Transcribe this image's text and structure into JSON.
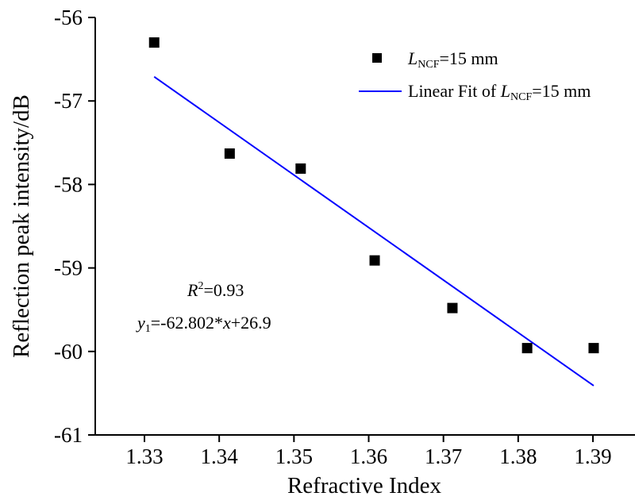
{
  "chart_data": {
    "type": "scatter",
    "xlabel": "Refractive Index",
    "ylabel": "Reflection peak intensity/dB",
    "xlim": [
      1.325,
      1.393
    ],
    "ylim": [
      -61,
      -56
    ],
    "xticks": [
      1.33,
      1.34,
      1.35,
      1.36,
      1.37,
      1.38,
      1.39
    ],
    "xtick_labels": [
      "1.33",
      "1.34",
      "1.35",
      "1.36",
      "1.37",
      "1.38",
      "1.39"
    ],
    "yticks": [
      -56,
      -57,
      -58,
      -59,
      -60,
      -61
    ],
    "ytick_labels": [
      "-56",
      "-57",
      "-58",
      "-59",
      "-60",
      "-61"
    ],
    "grid": false,
    "legend_position": "top-right",
    "series": [
      {
        "name": "L_NCF=15 mm",
        "kind": "scatter",
        "marker": "square",
        "color": "#000000",
        "x": [
          1.3313,
          1.3414,
          1.3509,
          1.3608,
          1.3712,
          1.3812,
          1.3901
        ],
        "y": [
          -56.3,
          -57.63,
          -57.81,
          -58.91,
          -59.48,
          -59.96,
          -59.96
        ]
      },
      {
        "name": "Linear Fit of L_NCF=15 mm",
        "kind": "line",
        "color": "#0000ff",
        "x": [
          1.3313,
          1.3901
        ],
        "y": [
          -56.71,
          -60.41
        ]
      }
    ],
    "legend": {
      "entry1_prefix": "L",
      "entry1_sub": "NCF",
      "entry1_suffix": "=15 mm",
      "entry2_prefix": "Linear Fit of ",
      "entry2_var": "L",
      "entry2_sub": "NCF",
      "entry2_suffix": "=15 mm"
    },
    "annotations": {
      "r2_var": "R",
      "r2_sup": "2",
      "r2_value": "=0.93",
      "eq_var": "y",
      "eq_sub": "1",
      "eq_mid": "=-62.802*",
      "eq_x": "x",
      "eq_end": "+26.9"
    }
  }
}
